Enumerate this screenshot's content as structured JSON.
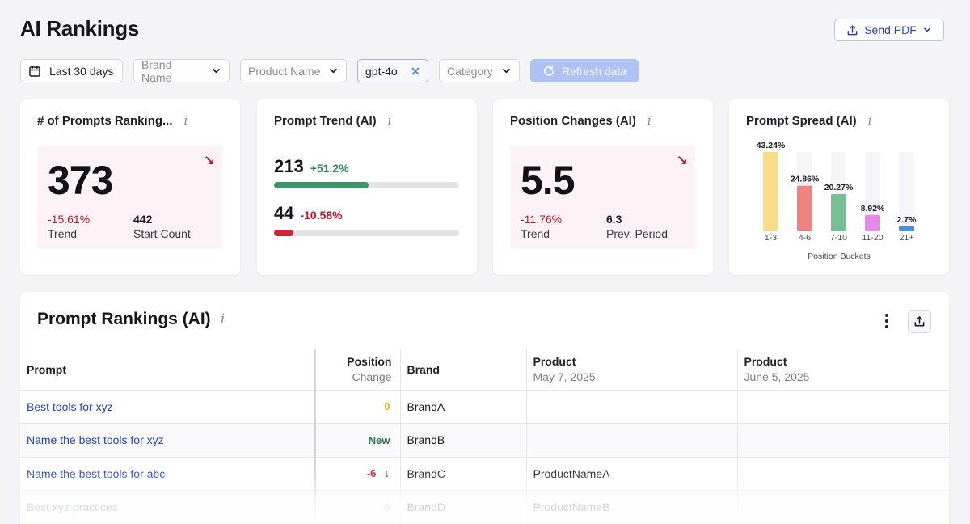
{
  "page": {
    "title": "AI Rankings"
  },
  "header": {
    "send_pdf_label": "Send PDF"
  },
  "filters": {
    "date_range": "Last 30 days",
    "brand_placeholder": "Brand Name",
    "product_placeholder": "Product Name",
    "model_tag": "gpt-4o",
    "category_placeholder": "Category",
    "refresh_label": "Refresh data"
  },
  "cards": {
    "prompts_ranking": {
      "title": "# of Prompts Ranking...",
      "value": "373",
      "trend_value": "-15.61%",
      "trend_label": "Trend",
      "start_value": "442",
      "start_label": "Start Count"
    },
    "prompt_trend": {
      "title": "Prompt Trend (AI)",
      "up_value": "213",
      "up_pct": "+51.2%",
      "up_fraction": 0.51,
      "down_value": "44",
      "down_pct": "-10.58%",
      "down_fraction": 0.106
    },
    "position_changes": {
      "title": "Position Changes (AI)",
      "value": "5.5",
      "trend_value": "-11.76%",
      "trend_label": "Trend",
      "prev_value": "6.3",
      "prev_label": "Prev. Period"
    },
    "prompt_spread": {
      "title": "Prompt Spread (AI)"
    }
  },
  "chart_data": {
    "type": "bar",
    "title": "Prompt Spread (AI)",
    "xlabel": "Position Buckets",
    "ylabel": "",
    "categories": [
      "1-3",
      "4-6",
      "7-10",
      "11-20",
      "21+"
    ],
    "values": [
      43.24,
      24.86,
      20.27,
      8.92,
      2.7
    ],
    "value_labels": [
      "43.24%",
      "24.86%",
      "20.27%",
      "8.92%",
      "2.7%"
    ],
    "colors": [
      "#f7dc8c",
      "#ec8582",
      "#79bf95",
      "#e58ae6",
      "#4a8be0"
    ],
    "ylim": [
      0,
      43.24
    ],
    "grid": false
  },
  "colors": {
    "accent": "#2346b8",
    "positive": "#2f8a5a",
    "negative": "#b3182c",
    "trend_up_bar": "#3e9368",
    "trend_down_bar": "#c62a36"
  },
  "table": {
    "title": "Prompt Rankings (AI)",
    "columns": {
      "prompt": "Prompt",
      "position_line1": "Position",
      "position_line2": "Change",
      "brand": "Brand",
      "product1_line1": "Product",
      "product1_line2": "May 7, 2025",
      "product2_line1": "Product",
      "product2_line2": "June 5, 2025"
    },
    "rows": [
      {
        "prompt": "Best tools for xyz",
        "position": "0",
        "position_kind": "zero",
        "brand": "BrandA",
        "product1": "",
        "product2": ""
      },
      {
        "prompt": "Name the best tools for xyz",
        "position": "New",
        "position_kind": "new",
        "brand": "BrandB",
        "product1": "",
        "product2": ""
      },
      {
        "prompt": "Name the best tools for abc",
        "position": "-6",
        "position_kind": "down",
        "brand": "BrandC",
        "product1": "ProductNameA",
        "product2": ""
      },
      {
        "prompt": "Best xyz practices",
        "position": "0",
        "position_kind": "zero",
        "brand": "BrandD",
        "product1": "ProductNameB",
        "product2": ""
      }
    ]
  }
}
